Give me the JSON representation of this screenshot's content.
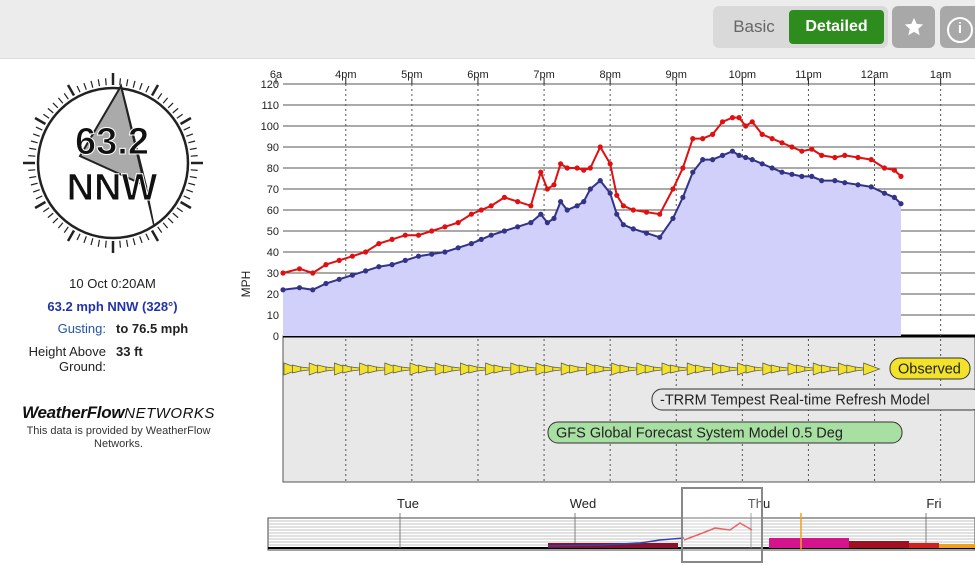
{
  "topbar": {
    "basic_label": "Basic",
    "detailed_label": "Detailed",
    "star_icon": "star-icon",
    "info_icon": "info-icon",
    "info_glyph": "i"
  },
  "gauge": {
    "speed": "63.2",
    "direction": "NNW"
  },
  "station": {
    "time": "10 Oct 0:20AM",
    "current": "63.2 mph NNW (328°)",
    "gusting_label": "Gusting:",
    "gusting_value": "to 76.5 mph",
    "height_label": "Height Above Ground:",
    "height_value": "33 ft"
  },
  "brand": {
    "logo_bold": "WeatherFlow",
    "logo_light": "NETWORKS",
    "note": "This data is provided by WeatherFlow Networks."
  },
  "colors": {
    "gust": "#e01010",
    "avg": "#333388",
    "fill": "#d0d0fa",
    "arrow": "#f2e22a",
    "accent": "#2e8b1e"
  },
  "chart_data": {
    "type": "line",
    "ylabel": "MPH",
    "ylim": [
      0,
      120
    ],
    "yticks": [
      0,
      10,
      20,
      30,
      40,
      50,
      60,
      70,
      80,
      90,
      100,
      110,
      120
    ],
    "grid": true,
    "x_ticks": [
      {
        "label": "6a",
        "t": 14.33
      },
      {
        "label": "4pm",
        "t": 16
      },
      {
        "label": "5pm",
        "t": 17
      },
      {
        "label": "6pm",
        "t": 18
      },
      {
        "label": "7pm",
        "t": 19
      },
      {
        "label": "8pm",
        "t": 20
      },
      {
        "label": "9pm",
        "t": 21
      },
      {
        "label": "10pm",
        "t": 22
      },
      {
        "label": "11pm",
        "t": 23
      },
      {
        "label": "12am",
        "t": 24
      },
      {
        "label": "1am",
        "t": 25
      }
    ],
    "xlim": [
      15.05,
      25.52
    ],
    "series": [
      {
        "key": "gust",
        "x": [
          15.05,
          15.3,
          15.5,
          15.7,
          15.9,
          16.1,
          16.3,
          16.5,
          16.7,
          16.9,
          17.1,
          17.3,
          17.5,
          17.7,
          17.9,
          18.05,
          18.2,
          18.4,
          18.6,
          18.8,
          18.95,
          19.05,
          19.15,
          19.25,
          19.35,
          19.5,
          19.6,
          19.7,
          19.85,
          20.0,
          20.1,
          20.2,
          20.35,
          20.55,
          20.75,
          20.95,
          21.1,
          21.25,
          21.4,
          21.55,
          21.7,
          21.85,
          21.95,
          22.05,
          22.15,
          22.3,
          22.45,
          22.6,
          22.75,
          22.9,
          23.05,
          23.2,
          23.4,
          23.55,
          23.75,
          23.95,
          24.15,
          24.3,
          24.4
        ],
        "y": [
          30,
          32,
          30,
          34,
          36,
          38,
          40,
          44,
          46,
          48,
          48,
          50,
          52,
          54,
          58,
          60,
          62,
          66,
          64,
          62,
          78,
          70,
          72,
          82,
          80,
          80,
          79,
          80,
          90,
          82,
          67,
          62,
          60,
          59,
          58,
          70,
          80,
          94,
          94,
          96,
          102,
          104,
          104,
          100,
          102,
          96,
          94,
          92,
          90,
          88,
          89,
          86,
          85,
          86,
          85,
          84,
          80,
          79,
          76
        ]
      },
      {
        "key": "avg",
        "x": [
          15.05,
          15.3,
          15.5,
          15.7,
          15.9,
          16.1,
          16.3,
          16.5,
          16.7,
          16.9,
          17.1,
          17.3,
          17.5,
          17.7,
          17.9,
          18.05,
          18.2,
          18.4,
          18.6,
          18.8,
          18.95,
          19.05,
          19.15,
          19.25,
          19.35,
          19.5,
          19.6,
          19.7,
          19.85,
          20.0,
          20.1,
          20.2,
          20.35,
          20.55,
          20.75,
          20.95,
          21.1,
          21.25,
          21.4,
          21.55,
          21.7,
          21.85,
          21.95,
          22.05,
          22.15,
          22.3,
          22.45,
          22.6,
          22.75,
          22.9,
          23.05,
          23.2,
          23.4,
          23.55,
          23.75,
          23.95,
          24.15,
          24.3,
          24.4
        ],
        "y": [
          22,
          23,
          22,
          25,
          27,
          29,
          31,
          33,
          34,
          36,
          38,
          39,
          40,
          42,
          44,
          46,
          48,
          50,
          52,
          54,
          58,
          54,
          56,
          64,
          60,
          62,
          64,
          70,
          74,
          68,
          58,
          53,
          51,
          49,
          47,
          56,
          66,
          78,
          84,
          84,
          86,
          88,
          86,
          85,
          84,
          82,
          80,
          78,
          77,
          76,
          76,
          74,
          74,
          73,
          72,
          71,
          68,
          66,
          63
        ]
      }
    ],
    "legend": [
      "Observed",
      "-TRRM Tempest Real-time Refresh Model",
      "GFS Global Forecast System Model  0.5 Deg"
    ],
    "overview_days": [
      "Tue",
      "Wed",
      "Thu",
      "Fri"
    ]
  }
}
